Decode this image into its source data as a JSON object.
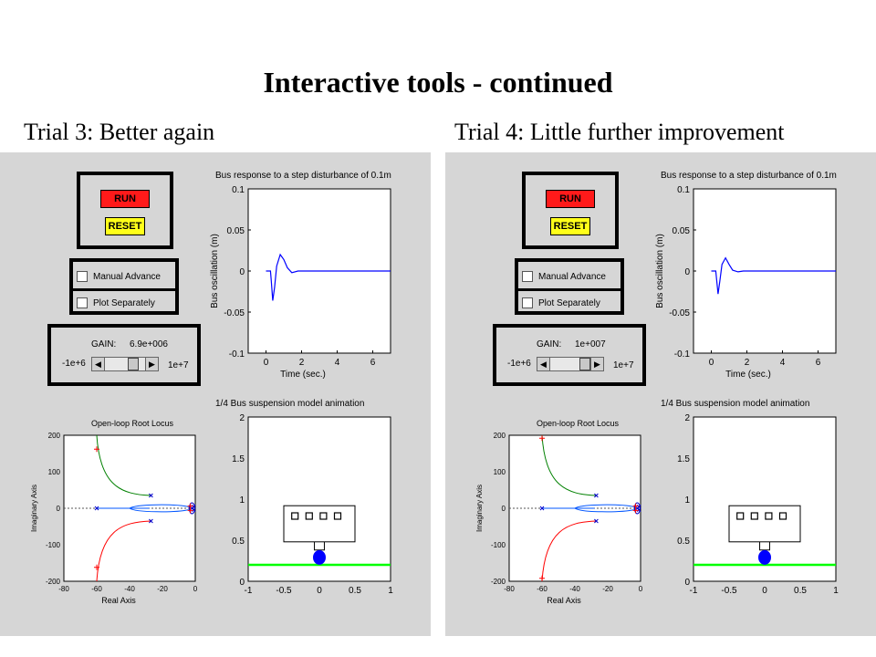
{
  "slide": {
    "title": "Interactive tools - continued"
  },
  "panels": [
    {
      "label": "Trial 3: Better again",
      "controls": {
        "run_label": "RUN",
        "reset_label": "RESET",
        "manual_advance_label": "Manual Advance",
        "plot_separately_label": "Plot Separately",
        "gain_label": "GAIN:",
        "gain_value": "6.9e+006",
        "slider_min_label": "-1e+6",
        "slider_max_label": "1e+7",
        "slider_position": 0.77
      },
      "response_plot": {
        "title": "Bus response to a step disturbance of 0.1m",
        "xlabel": "Time (sec.)",
        "ylabel": "Bus oscillation (m)",
        "xticks": [
          "0",
          "2",
          "4",
          "6"
        ],
        "yticks": [
          "0.1",
          "0.05",
          "0",
          "-0.05",
          "-0.1"
        ],
        "series_color": "#0000ff",
        "points": [
          [
            0,
            0
          ],
          [
            0.25,
            0
          ],
          [
            0.3,
            -0.012
          ],
          [
            0.38,
            -0.036
          ],
          [
            0.48,
            -0.02
          ],
          [
            0.6,
            0.006
          ],
          [
            0.8,
            0.02
          ],
          [
            1.0,
            0.014
          ],
          [
            1.2,
            0.004
          ],
          [
            1.45,
            -0.002
          ],
          [
            1.8,
            0
          ],
          [
            7,
            0
          ]
        ]
      },
      "root_locus": {
        "title": "Open-loop Root Locus",
        "xlabel": "Real Axis",
        "ylabel": "Imaginary Axis",
        "xticks": [
          "-80",
          "-60",
          "-40",
          "-20",
          "0"
        ],
        "yticks": [
          "200",
          "100",
          "0",
          "-100",
          "-200"
        ],
        "selected_pole_y": 162
      },
      "animation": {
        "title": "1/4 Bus suspension model animation",
        "xticks": [
          "-1",
          "-0.5",
          "0",
          "0.5",
          "1"
        ],
        "yticks": [
          "2",
          "1.5",
          "1",
          "0.5",
          "0"
        ],
        "ground_color": "#00ff00",
        "wheel_color": "#0000ff"
      }
    },
    {
      "label": "Trial 4: Little further improvement",
      "controls": {
        "run_label": "RUN",
        "reset_label": "RESET",
        "manual_advance_label": "Manual Advance",
        "plot_separately_label": "Plot Separately",
        "gain_label": "GAIN:",
        "gain_value": "1e+007",
        "slider_min_label": "-1e+6",
        "slider_max_label": "1e+7",
        "slider_position": 1.0
      },
      "response_plot": {
        "title": "Bus response to a step disturbance of 0.1m",
        "xlabel": "Time (sec.)",
        "ylabel": "Bus oscillation (m)",
        "xticks": [
          "0",
          "2",
          "4",
          "6"
        ],
        "yticks": [
          "0.1",
          "0.05",
          "0",
          "-0.05",
          "-0.1"
        ],
        "series_color": "#0000ff",
        "points": [
          [
            0,
            0
          ],
          [
            0.25,
            0
          ],
          [
            0.3,
            -0.01
          ],
          [
            0.38,
            -0.028
          ],
          [
            0.48,
            -0.012
          ],
          [
            0.6,
            0.008
          ],
          [
            0.8,
            0.016
          ],
          [
            1.0,
            0.008
          ],
          [
            1.2,
            0.001
          ],
          [
            1.5,
            -0.001
          ],
          [
            1.8,
            0
          ],
          [
            7,
            0
          ]
        ]
      },
      "root_locus": {
        "title": "Open-loop Root Locus",
        "xlabel": "Real Axis",
        "ylabel": "Imaginary Axis",
        "xticks": [
          "-80",
          "-60",
          "-40",
          "-20",
          "0"
        ],
        "yticks": [
          "200",
          "100",
          "0",
          "-100",
          "-200"
        ],
        "selected_pole_y": 192
      },
      "animation": {
        "title": "1/4 Bus suspension model animation",
        "xticks": [
          "-1",
          "-0.5",
          "0",
          "0.5",
          "1"
        ],
        "yticks": [
          "2",
          "1.5",
          "1",
          "0.5",
          "0"
        ],
        "ground_color": "#00ff00",
        "wheel_color": "#0000ff"
      }
    }
  ]
}
